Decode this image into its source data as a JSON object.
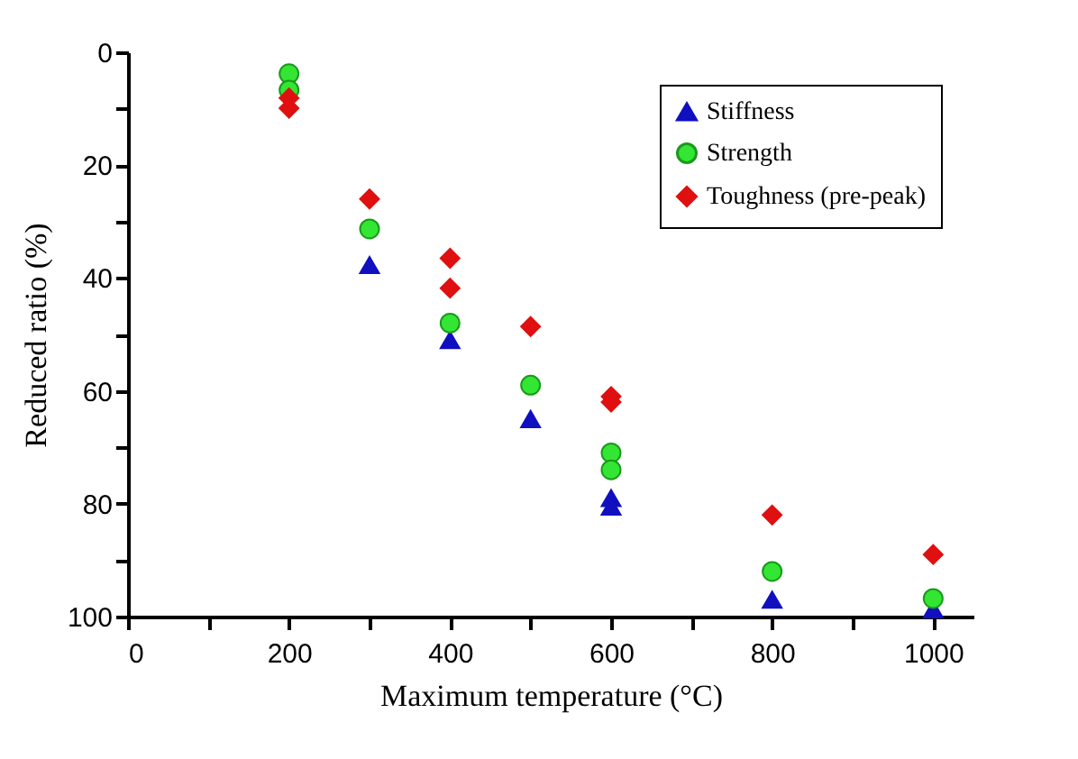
{
  "chart_data": {
    "type": "scatter",
    "xlabel": "Maximum temperature (°C)",
    "ylabel": "Reduced ratio (%)",
    "xlim": [
      0,
      1050
    ],
    "ylim": [
      100,
      0
    ],
    "xticks": [
      0,
      {
        "value": 100,
        "label": null
      },
      200,
      {
        "value": 300,
        "label": null
      },
      400,
      {
        "value": 500,
        "label": null
      },
      600,
      {
        "value": 700,
        "label": null
      },
      800,
      {
        "value": 900,
        "label": null
      },
      1000
    ],
    "yticks": [
      0,
      {
        "value": 10,
        "label": null
      },
      20,
      {
        "value": 30,
        "label": null
      },
      40,
      {
        "value": 50,
        "label": null
      },
      60,
      {
        "value": 70,
        "label": null
      },
      80,
      {
        "value": 90,
        "label": null
      },
      100
    ],
    "grid": false,
    "legend": "top right",
    "series": [
      {
        "name": "Stiffness",
        "color": "#1010c0",
        "marker": "triangle",
        "x": [
          300,
          400,
          500,
          600,
          600,
          800,
          1000
        ],
        "values": [
          37.7,
          51,
          65,
          79,
          80.5,
          97,
          98.7
        ]
      },
      {
        "name": "Strength",
        "color": "#33e633",
        "marker": "circle",
        "x": [
          200,
          200,
          300,
          400,
          500,
          600,
          600,
          800,
          1000
        ],
        "values": [
          3.8,
          6.7,
          31.3,
          48,
          59,
          71,
          74,
          92,
          96.8
        ]
      },
      {
        "name": "Toughness (pre-peak)",
        "color": "#e01010",
        "marker": "diamond",
        "x": [
          200,
          200,
          300,
          400,
          400,
          500,
          600,
          600,
          800,
          1000
        ],
        "values": [
          8.1,
          9.9,
          26,
          36.5,
          41.8,
          48.6,
          61,
          62,
          82,
          89
        ]
      }
    ]
  }
}
